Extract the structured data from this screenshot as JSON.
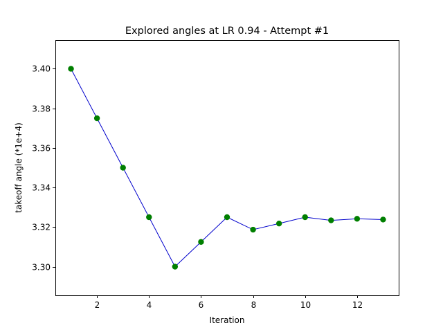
{
  "chart_data": {
    "type": "line",
    "title": "Explored angles at LR 0.94 - Attempt #1",
    "xlabel": "Iteration",
    "ylabel": "takeoff angle (*1e+4)",
    "xlim": [
      0.4,
      13.6
    ],
    "ylim": [
      3.2855,
      3.4145
    ],
    "x_ticks": [
      2,
      4,
      6,
      8,
      10,
      12
    ],
    "x_tick_labels": [
      "2",
      "4",
      "6",
      "8",
      "10",
      "12"
    ],
    "y_ticks": [
      3.3,
      3.32,
      3.34,
      3.36,
      3.38,
      3.4
    ],
    "y_tick_labels": [
      "3.30",
      "3.32",
      "3.34",
      "3.36",
      "3.38",
      "3.40"
    ],
    "grid": false,
    "legend": "none",
    "series": [
      {
        "x": [
          1,
          2,
          3,
          4,
          5,
          6,
          7,
          8,
          9,
          10,
          11,
          12,
          13
        ],
        "values": [
          3.4,
          3.375,
          3.35,
          3.325,
          3.3,
          3.3125,
          3.325,
          3.3187,
          3.3218,
          3.325,
          3.3234,
          3.3242,
          3.3238
        ],
        "line_color": "#0000cc",
        "marker_color": "#007f00"
      }
    ]
  }
}
